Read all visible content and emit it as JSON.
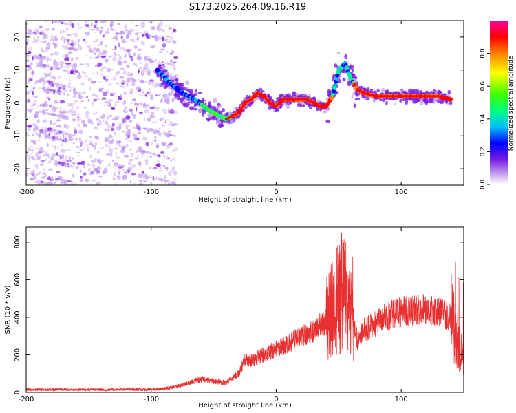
{
  "title": "S173.2025.264.09.16.R19",
  "chart_data": [
    {
      "type": "heatmap",
      "xlabel": "Height of straight line (km)",
      "ylabel": "Frequency (Hz)",
      "xlim": [
        -200,
        150
      ],
      "ylim": [
        -25,
        25
      ],
      "xticks": [
        -200,
        -100,
        0,
        100
      ],
      "yticks": [
        -20,
        -10,
        0,
        10,
        20
      ],
      "grid": false,
      "colorbar": {
        "label": "Normalized spectral amplitude",
        "range": [
          0,
          1
        ],
        "ticks": [
          "0.0",
          "0.2",
          "0.4",
          "0.6",
          "0.8"
        ],
        "colors": [
          "#ffffff",
          "#c9a8f0",
          "#7a1fe0",
          "#0000ff",
          "#00bfff",
          "#00ff80",
          "#40ff00",
          "#ffff00",
          "#ff8000",
          "#ff0000",
          "#ff00a0"
        ]
      },
      "ridge": {
        "x": [
          -95,
          -85,
          -75,
          -65,
          -55,
          -45,
          -40,
          -35,
          -30,
          -25,
          -20,
          -15,
          -10,
          -5,
          0,
          5,
          10,
          15,
          20,
          25,
          30,
          35,
          40,
          45,
          50,
          55,
          60,
          65,
          70,
          80,
          90,
          100,
          110,
          120,
          130,
          140
        ],
        "y": [
          10,
          6,
          3,
          1,
          -2,
          -4,
          -5,
          -4,
          -3,
          0,
          1,
          3,
          2,
          0,
          -1,
          1,
          1,
          1,
          1,
          1,
          0,
          -1,
          -1,
          2,
          10,
          12,
          7,
          4,
          3,
          2,
          2,
          2,
          2,
          2,
          2,
          1
        ]
      }
    },
    {
      "type": "line",
      "xlabel": "Height of straight line (km)",
      "ylabel": "SNR (10 * v/v)",
      "xlim": [
        -200,
        150
      ],
      "ylim": [
        0,
        880
      ],
      "xticks": [
        -200,
        -100,
        0,
        100
      ],
      "yticks": [
        0,
        200,
        400,
        600,
        800
      ],
      "grid": false,
      "color": "#e83030",
      "x": [
        -200,
        -180,
        -160,
        -140,
        -120,
        -100,
        -90,
        -80,
        -70,
        -60,
        -50,
        -40,
        -30,
        -25,
        -20,
        -10,
        0,
        10,
        20,
        30,
        40,
        45,
        50,
        55,
        60,
        65,
        70,
        80,
        90,
        100,
        110,
        120,
        130,
        140,
        145,
        150
      ],
      "y": [
        15,
        15,
        15,
        15,
        15,
        15,
        20,
        30,
        50,
        70,
        60,
        50,
        100,
        170,
        170,
        200,
        230,
        260,
        300,
        330,
        380,
        450,
        500,
        520,
        420,
        280,
        330,
        370,
        410,
        430,
        440,
        440,
        430,
        400,
        300,
        150
      ]
    }
  ]
}
